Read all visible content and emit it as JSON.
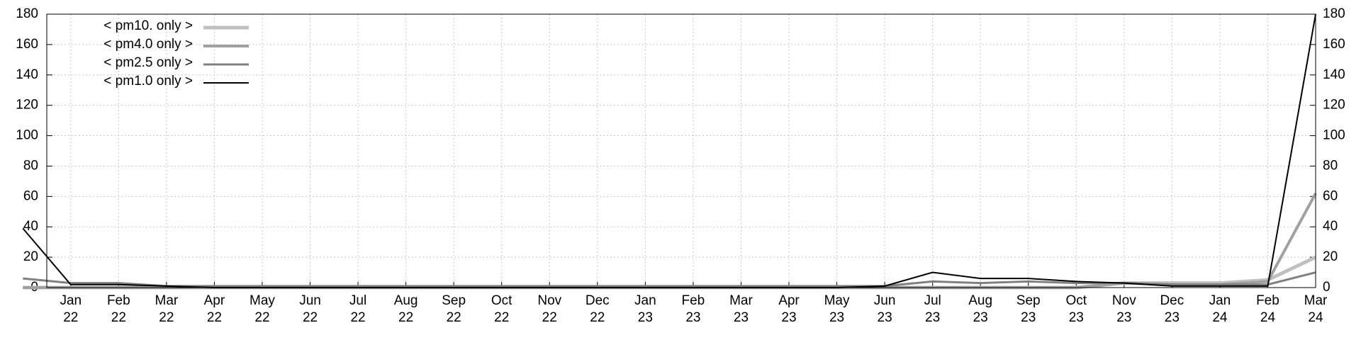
{
  "chart_data": {
    "type": "line",
    "x": [
      "2021-12",
      "2022-01",
      "2022-02",
      "2022-03",
      "2022-04",
      "2022-05",
      "2022-06",
      "2022-07",
      "2022-08",
      "2022-09",
      "2022-10",
      "2022-11",
      "2022-12",
      "2023-01",
      "2023-02",
      "2023-03",
      "2023-04",
      "2023-05",
      "2023-06",
      "2023-07",
      "2023-08",
      "2023-09",
      "2023-10",
      "2023-11",
      "2023-12",
      "2024-01",
      "2024-02",
      "2024-03"
    ],
    "series": [
      {
        "name": "< pm10. only >",
        "color": "#c0c0c0",
        "width": 5,
        "values": [
          0,
          0,
          0,
          0,
          0,
          0,
          0,
          0,
          0,
          0,
          0,
          0,
          0,
          0,
          0,
          0,
          0,
          0,
          0,
          0,
          0,
          0,
          0,
          3,
          3,
          3,
          5,
          20
        ]
      },
      {
        "name": "< pm4.0 only >",
        "color": "#a0a0a0",
        "width": 4,
        "values": [
          0,
          0,
          0,
          0,
          0,
          0,
          0,
          0,
          0,
          0,
          0,
          0,
          0,
          0,
          0,
          0,
          0,
          0,
          0,
          0,
          0,
          0,
          0,
          3,
          2,
          2,
          4,
          62
        ]
      },
      {
        "name": "< pm2.5 only >",
        "color": "#808080",
        "width": 3,
        "values": [
          6,
          3,
          3,
          1,
          1,
          1,
          1,
          1,
          1,
          1,
          1,
          1,
          1,
          1,
          1,
          1,
          1,
          1,
          1,
          4,
          3,
          4,
          3,
          3,
          2,
          2,
          2,
          10
        ]
      },
      {
        "name": "< pm1.0 only >",
        "color": "#000000",
        "width": 2,
        "values": [
          39,
          2,
          2,
          1,
          0,
          0,
          0,
          0,
          0,
          0,
          0,
          0,
          0,
          0,
          0,
          0,
          0,
          0,
          1,
          10,
          6,
          6,
          4,
          3,
          1,
          1,
          1,
          180
        ]
      }
    ],
    "xlim": [
      "2021-12",
      "2024-03"
    ],
    "xticks": [
      {
        "value": "2022-01",
        "label": "Jan 22"
      },
      {
        "value": "2022-02",
        "label": "Feb 22"
      },
      {
        "value": "2022-03",
        "label": "Mar 22"
      },
      {
        "value": "2022-04",
        "label": "Apr 22"
      },
      {
        "value": "2022-05",
        "label": "May 22"
      },
      {
        "value": "2022-06",
        "label": "Jun 22"
      },
      {
        "value": "2022-07",
        "label": "Jul 22"
      },
      {
        "value": "2022-08",
        "label": "Aug 22"
      },
      {
        "value": "2022-09",
        "label": "Sep 22"
      },
      {
        "value": "2022-10",
        "label": "Oct 22"
      },
      {
        "value": "2022-11",
        "label": "Nov 22"
      },
      {
        "value": "2022-12",
        "label": "Dec 22"
      },
      {
        "value": "2023-01",
        "label": "Jan 23"
      },
      {
        "value": "2023-02",
        "label": "Feb 23"
      },
      {
        "value": "2023-03",
        "label": "Mar 23"
      },
      {
        "value": "2023-04",
        "label": "Apr 23"
      },
      {
        "value": "2023-05",
        "label": "May 23"
      },
      {
        "value": "2023-06",
        "label": "Jun 23"
      },
      {
        "value": "2023-07",
        "label": "Jul 23"
      },
      {
        "value": "2023-08",
        "label": "Aug 23"
      },
      {
        "value": "2023-09",
        "label": "Sep 23"
      },
      {
        "value": "2023-10",
        "label": "Oct 23"
      },
      {
        "value": "2023-11",
        "label": "Nov 23"
      },
      {
        "value": "2023-12",
        "label": "Dec 23"
      },
      {
        "value": "2024-01",
        "label": "Jan 24"
      },
      {
        "value": "2024-02",
        "label": "Feb 24"
      },
      {
        "value": "2024-03",
        "label": "Mar 24"
      }
    ],
    "ylim": [
      0,
      180
    ],
    "yticks": [
      0,
      20,
      40,
      60,
      80,
      100,
      120,
      140,
      160,
      180
    ],
    "y2lim": [
      0,
      180
    ],
    "y2ticks": [
      0,
      20,
      40,
      60,
      80,
      100,
      120,
      140,
      160,
      180
    ],
    "grid": true,
    "legend": "upper left"
  }
}
